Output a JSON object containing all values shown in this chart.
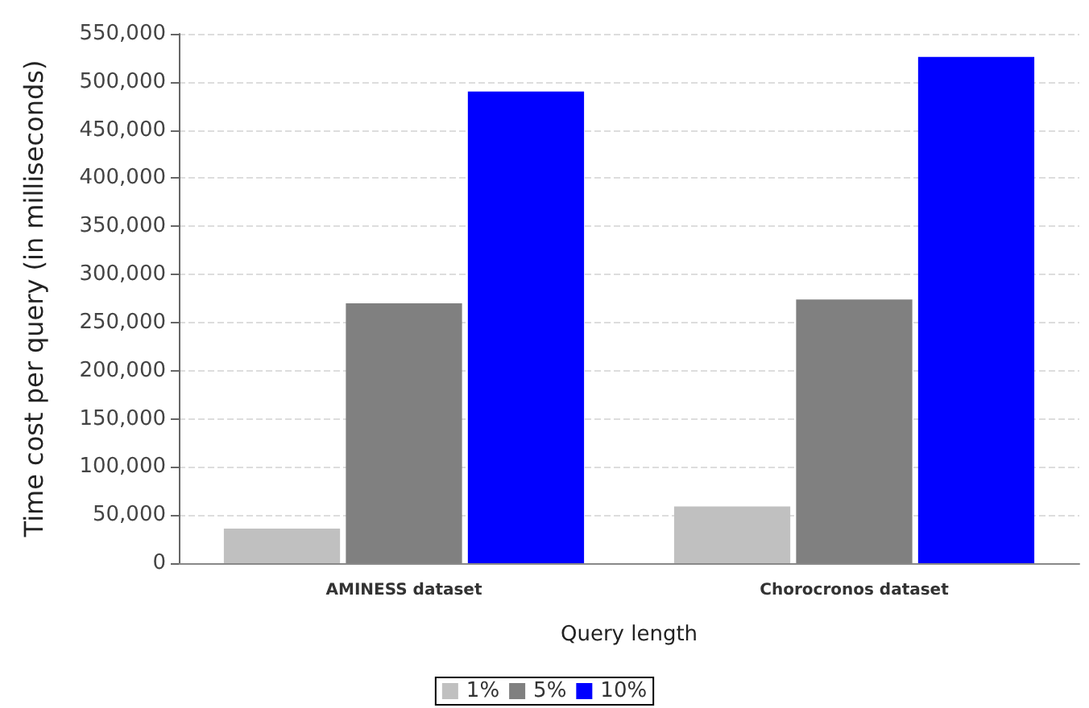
{
  "chart_data": {
    "type": "bar",
    "xlabel": "Query length",
    "ylabel": "Time cost per query (in milliseconds)",
    "categories": [
      "AMINESS dataset",
      "Chorocronos dataset"
    ],
    "series": [
      {
        "name": "1%",
        "color": "#c0c0c0",
        "values": [
          36000,
          59000
        ]
      },
      {
        "name": "5%",
        "color": "#808080",
        "values": [
          270000,
          274000
        ]
      },
      {
        "name": "10%",
        "color": "#0000ff",
        "values": [
          490000,
          526000
        ]
      }
    ],
    "ylim": [
      0,
      550000
    ],
    "yticks": [
      0,
      {
        "value": 50000,
        "label": "50,000"
      },
      {
        "value": 100000,
        "label": "100,000"
      },
      {
        "value": 150000,
        "label": "150,000"
      },
      {
        "value": 200000,
        "label": "200,000"
      },
      {
        "value": 250000,
        "label": "250,000"
      },
      {
        "value": 300000,
        "label": "300,000"
      },
      {
        "value": 350000,
        "label": "350,000"
      },
      {
        "value": 400000,
        "label": "400,000"
      },
      {
        "value": 450000,
        "label": "450,000"
      },
      {
        "value": 500000,
        "label": "500,000"
      },
      {
        "value": 550000,
        "label": "550,000"
      }
    ],
    "grid": "y",
    "legend": "bottom"
  }
}
